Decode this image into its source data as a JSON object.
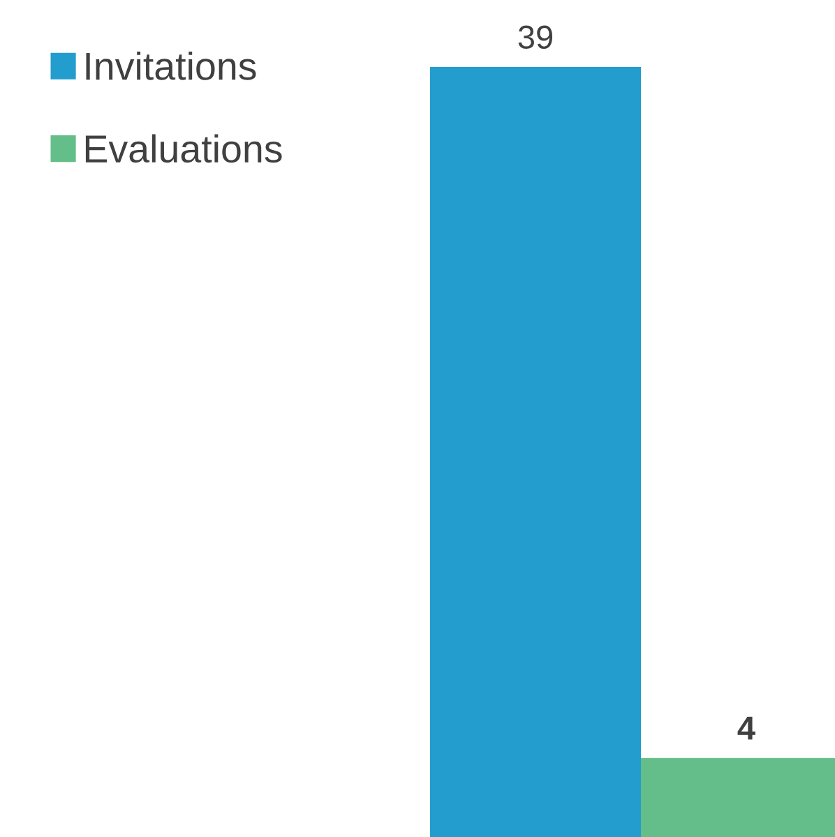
{
  "chart_data": {
    "type": "bar",
    "categories": [
      null
    ],
    "series": [
      {
        "name": "Invitations",
        "color": "#239dcd",
        "values": [
          39
        ]
      },
      {
        "name": "Evaluations",
        "color": "#63be8a",
        "values": [
          4
        ]
      }
    ],
    "data_labels": true,
    "legend": "top left",
    "grid": false
  }
}
